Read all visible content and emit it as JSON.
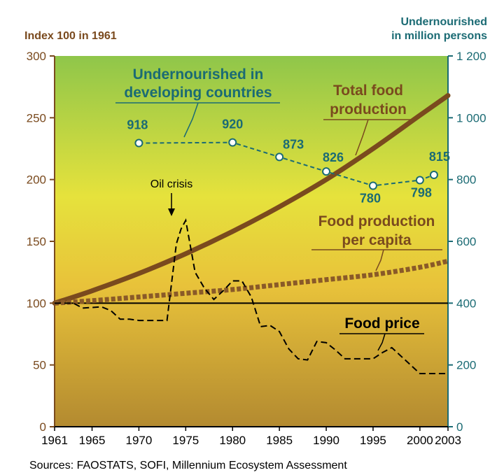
{
  "chart_data": {
    "type": "line",
    "left_axis_title": "Index 100 in 1961",
    "right_axis_title_line1": "Undernourished",
    "right_axis_title_line2": "in million persons",
    "x_ticks": [
      "1961",
      "1965",
      "1970",
      "1975",
      "1980",
      "1985",
      "1990",
      "1995",
      "2000",
      "2003"
    ],
    "x_tick_values": [
      1961,
      1965,
      1970,
      1975,
      1980,
      1985,
      1990,
      1995,
      2000,
      2003
    ],
    "xlim": [
      1961,
      2003
    ],
    "left_ticks": [
      "0",
      "50",
      "100",
      "150",
      "200",
      "250",
      "300"
    ],
    "left_tick_values": [
      0,
      50,
      100,
      150,
      200,
      250,
      300
    ],
    "ylim_left": [
      0,
      300
    ],
    "right_ticks": [
      "0",
      "200",
      "400",
      "600",
      "800",
      "1 000",
      "1 200"
    ],
    "right_tick_values": [
      0,
      200,
      400,
      600,
      800,
      1000,
      1200
    ],
    "ylim_right": [
      0,
      1200
    ],
    "reference_line": 100,
    "series": [
      {
        "name": "Total food production",
        "label_line1": "Total food",
        "label_line2": "production",
        "axis": "left",
        "style": "solid",
        "color": "#7a4a1e",
        "x": [
          1961,
          1965,
          1970,
          1975,
          1980,
          1985,
          1990,
          1995,
          2000,
          2003
        ],
        "y": [
          100,
          110,
          124,
          140,
          158,
          178,
          200,
          225,
          252,
          268
        ]
      },
      {
        "name": "Food production per capita",
        "label_line1": "Food production",
        "label_line2": "per capita",
        "axis": "left",
        "style": "dashed",
        "color": "#8a5a28",
        "x": [
          1961,
          1965,
          1970,
          1975,
          1980,
          1985,
          1990,
          1995,
          2000,
          2003
        ],
        "y": [
          100,
          102,
          105,
          108,
          111,
          115,
          119,
          123,
          129,
          134
        ]
      },
      {
        "name": "Food price",
        "label": "Food price",
        "axis": "left",
        "style": "dashed",
        "color": "#000000",
        "x": [
          1961,
          1963,
          1964,
          1966,
          1967,
          1968,
          1969,
          1970,
          1971,
          1972,
          1973,
          1974,
          1974.5,
          1975,
          1976,
          1977,
          1978,
          1979,
          1980,
          1981,
          1982,
          1983,
          1984,
          1985,
          1986,
          1987,
          1988,
          1989,
          1990,
          1991,
          1992,
          1993,
          1994,
          1995,
          1996,
          1997,
          1998,
          1999,
          2000,
          2001,
          2002,
          2003
        ],
        "y": [
          100,
          100,
          96,
          97,
          94,
          87,
          87,
          86,
          86,
          86,
          86,
          148,
          160,
          167,
          125,
          112,
          103,
          110,
          118,
          118,
          105,
          81,
          82,
          77,
          63,
          55,
          54,
          69,
          68,
          62,
          55,
          55,
          55,
          55,
          60,
          64,
          57,
          50,
          43,
          43,
          43,
          43
        ]
      },
      {
        "name": "Undernourished in developing countries",
        "label_line1": "Undernourished in",
        "label_line2": "developing countries",
        "axis": "right",
        "style": "dashed-markers",
        "color": "#1b6b74",
        "x": [
          1970,
          1980,
          1985,
          1990,
          1995,
          2000,
          2001.5
        ],
        "y": [
          918,
          920,
          873,
          826,
          780,
          798,
          815
        ],
        "point_labels": [
          "918",
          "920",
          "873",
          "826",
          "780",
          "798",
          "815"
        ]
      }
    ],
    "annotation": {
      "text": "Oil crisis",
      "x": 1974.5,
      "y": 167
    }
  },
  "source_text": "Sources: FAOSTATS, SOFI, Millennium Ecosystem Assessment"
}
